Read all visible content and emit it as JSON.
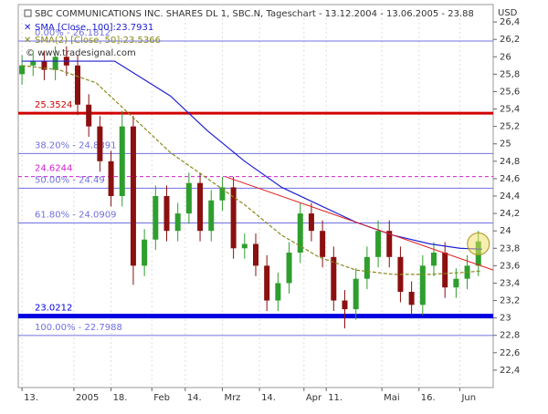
{
  "chart_data": {
    "type": "candlestick",
    "title": "SBC COMMUNICATIONS INC. SHARES DL 1, SBC.N, Tageschart - 13.12.2004 - 13.06.2005 - 23.88",
    "source": "© www.tradesignal.com",
    "currency": "USD",
    "xlim": [
      -1,
      127
    ],
    "xticks": [
      {
        "value": 0,
        "label": "13."
      },
      {
        "value": 14,
        "label": "2005"
      },
      {
        "value": 24,
        "label": "18."
      },
      {
        "value": 35,
        "label": "Feb"
      },
      {
        "value": 44,
        "label": "14."
      },
      {
        "value": 54,
        "label": "Mrz"
      },
      {
        "value": 64,
        "label": "14."
      },
      {
        "value": 76,
        "label": "Apr"
      },
      {
        "value": 82,
        "label": "11."
      },
      {
        "value": 97,
        "label": "Mai"
      },
      {
        "value": 107,
        "label": "16."
      },
      {
        "value": 118,
        "label": "Jun"
      }
    ],
    "ylim": [
      22.2,
      26.6
    ],
    "yticks": [
      {
        "value": 22.4,
        "label": "22,4"
      },
      {
        "value": 22.6,
        "label": "22,6"
      },
      {
        "value": 22.8,
        "label": "22,8"
      },
      {
        "value": 23,
        "label": "23"
      },
      {
        "value": 23.2,
        "label": "23,2"
      },
      {
        "value": 23.4,
        "label": "23,4"
      },
      {
        "value": 23.6,
        "label": "23,6"
      },
      {
        "value": 23.8,
        "label": "23,8"
      },
      {
        "value": 24,
        "label": "24"
      },
      {
        "value": 24.2,
        "label": "24,2"
      },
      {
        "value": 24.4,
        "label": "24,4"
      },
      {
        "value": 24.6,
        "label": "24,6"
      },
      {
        "value": 24.8,
        "label": "24,8"
      },
      {
        "value": 25,
        "label": "25"
      },
      {
        "value": 25.2,
        "label": "25,2"
      },
      {
        "value": 25.4,
        "label": "25,4"
      },
      {
        "value": 25.6,
        "label": "25,6"
      },
      {
        "value": 25.8,
        "label": "25,8"
      },
      {
        "value": 26,
        "label": "26"
      },
      {
        "value": 26.2,
        "label": "26,2"
      },
      {
        "value": 26.4,
        "label": "26,4"
      }
    ],
    "candles": {
      "up_color": "#2e9e2e",
      "down_color": "#8b1010",
      "x": [
        0,
        3,
        6,
        9,
        12,
        15,
        18,
        21,
        24,
        27,
        30,
        33,
        36,
        39,
        42,
        45,
        48,
        51,
        54,
        57,
        60,
        63,
        66,
        69,
        72,
        75,
        78,
        81,
        84,
        87,
        90,
        93,
        96,
        99,
        102,
        105,
        108,
        111,
        114,
        117,
        120,
        123
      ],
      "open": [
        25.8,
        25.9,
        25.95,
        25.85,
        26.0,
        25.9,
        25.45,
        25.2,
        24.8,
        24.4,
        25.2,
        23.6,
        23.9,
        24.4,
        24.0,
        24.2,
        24.55,
        24.0,
        24.35,
        24.5,
        23.8,
        23.85,
        23.6,
        23.2,
        23.4,
        23.75,
        24.2,
        24.0,
        23.7,
        23.2,
        23.1,
        23.45,
        23.7,
        24.0,
        23.7,
        23.3,
        23.15,
        23.6,
        23.75,
        23.35,
        23.45,
        23.6
      ],
      "high": [
        26.02,
        26.07,
        26.07,
        26.12,
        26.12,
        26.02,
        25.57,
        25.32,
        24.92,
        25.38,
        25.32,
        24.02,
        24.52,
        24.52,
        24.32,
        24.67,
        24.67,
        24.47,
        24.62,
        24.62,
        23.97,
        23.97,
        23.72,
        23.52,
        23.87,
        24.32,
        24.32,
        24.12,
        23.82,
        23.32,
        23.57,
        23.82,
        24.12,
        24.12,
        23.82,
        23.42,
        23.72,
        23.87,
        23.87,
        23.57,
        23.72,
        24.0
      ],
      "low": [
        25.68,
        25.78,
        25.73,
        25.73,
        25.78,
        25.33,
        25.08,
        24.68,
        24.28,
        24.28,
        23.38,
        23.48,
        23.78,
        23.88,
        23.88,
        24.08,
        23.88,
        23.88,
        24.23,
        23.68,
        23.68,
        23.48,
        23.08,
        23.08,
        23.28,
        23.63,
        23.88,
        23.58,
        23.08,
        22.88,
        22.98,
        23.33,
        23.58,
        23.58,
        23.18,
        23.03,
        23.03,
        23.48,
        23.23,
        23.23,
        23.33,
        23.48
      ],
      "close": [
        25.9,
        25.95,
        25.85,
        26.0,
        25.9,
        25.45,
        25.2,
        24.8,
        24.4,
        25.2,
        23.6,
        23.9,
        24.4,
        24.0,
        24.2,
        24.55,
        24.0,
        24.35,
        24.5,
        23.8,
        23.85,
        23.6,
        23.2,
        23.4,
        23.75,
        24.2,
        24.0,
        23.7,
        23.2,
        23.1,
        23.45,
        23.7,
        24.0,
        23.7,
        23.3,
        23.15,
        23.6,
        23.75,
        23.35,
        23.45,
        23.6,
        23.88
      ]
    },
    "series": [
      {
        "name": "SMA [Close, 100]:23.7931",
        "color": "#2020d0",
        "dash": false,
        "x": [
          0,
          25,
          40,
          50,
          60,
          70,
          80,
          90,
          100,
          110,
          118,
          124
        ],
        "values": [
          25.95,
          25.95,
          25.55,
          25.15,
          24.8,
          24.5,
          24.3,
          24.1,
          23.95,
          23.85,
          23.8,
          23.79
        ]
      },
      {
        "name": "SMA(2) [Close, 50]:23.5366",
        "color": "#8a8a20",
        "dash": true,
        "x": [
          0,
          10,
          20,
          30,
          40,
          50,
          60,
          70,
          80,
          90,
          100,
          110,
          118,
          124
        ],
        "values": [
          25.9,
          25.85,
          25.7,
          25.3,
          24.9,
          24.6,
          24.3,
          23.95,
          23.7,
          23.55,
          23.5,
          23.5,
          23.52,
          23.54
        ]
      }
    ],
    "levels": [
      {
        "value": 26.1812,
        "label": "0.00% - 26.1812",
        "color": "#7070e0",
        "width": 1,
        "dash": false
      },
      {
        "value": 25.3524,
        "label": "25.3524",
        "color": "#d00000",
        "width": 3,
        "dash": false
      },
      {
        "value": 24.8891,
        "label": "38.20% - 24.8891",
        "color": "#7070e0",
        "width": 1,
        "dash": false
      },
      {
        "value": 24.6244,
        "label": "24.6244",
        "color": "#d020d0",
        "width": 1,
        "dash": true
      },
      {
        "value": 24.49,
        "label": "50.00% - 24.49",
        "color": "#7070e0",
        "width": 1,
        "dash": false
      },
      {
        "value": 24.0909,
        "label": "61.80% - 24.0909",
        "color": "#7070e0",
        "width": 1,
        "dash": false
      },
      {
        "value": 23.0212,
        "label": "23.0212",
        "color": "#0000e0",
        "width": 5,
        "dash": false
      },
      {
        "value": 22.7988,
        "label": "100.00% - 22.7988",
        "color": "#7070e0",
        "width": 1,
        "dash": false
      }
    ],
    "trendline": {
      "color": "#e02020",
      "x": [
        55,
        127
      ],
      "values": [
        24.62,
        23.55
      ]
    },
    "highlight": {
      "x": 123,
      "y": 23.85,
      "color": "#f0e060"
    }
  }
}
